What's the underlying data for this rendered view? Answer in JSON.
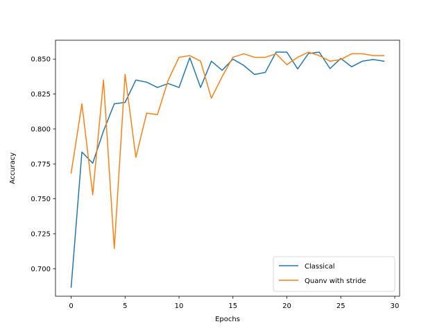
{
  "chart_data": {
    "type": "line",
    "title": "",
    "xlabel": "Epochs",
    "ylabel": "Accuracy",
    "xlim": [
      -1.45,
      30.45
    ],
    "ylim": [
      0.6803,
      0.8635
    ],
    "xticks": [
      0,
      5,
      10,
      15,
      20,
      25,
      30
    ],
    "yticks": [
      0.7,
      0.725,
      0.75,
      0.775,
      0.8,
      0.825,
      0.85
    ],
    "ytick_format_decimals": 3,
    "grid": false,
    "legend_position": "lower-right",
    "x": [
      0,
      1,
      2,
      3,
      4,
      5,
      6,
      7,
      8,
      9,
      10,
      11,
      12,
      13,
      14,
      15,
      16,
      17,
      18,
      19,
      20,
      21,
      22,
      23,
      24,
      25,
      26,
      27,
      28,
      29
    ],
    "series": [
      {
        "name": "Classical",
        "color": "#1f77b4",
        "values": [
          0.6867,
          0.7835,
          0.7755,
          0.7985,
          0.818,
          0.819,
          0.835,
          0.8335,
          0.8297,
          0.8325,
          0.8297,
          0.851,
          0.8297,
          0.8485,
          0.842,
          0.85,
          0.8455,
          0.839,
          0.8405,
          0.855,
          0.855,
          0.843,
          0.854,
          0.855,
          0.8432,
          0.8505,
          0.8445,
          0.8485,
          0.8497,
          0.8485
        ]
      },
      {
        "name": "Quanv with stride",
        "color": "#ff7f0e",
        "values": [
          0.7685,
          0.818,
          0.753,
          0.835,
          0.7145,
          0.839,
          0.7797,
          0.8113,
          0.8103,
          0.835,
          0.8513,
          0.8525,
          0.8485,
          0.822,
          0.8375,
          0.8513,
          0.8538,
          0.8513,
          0.8513,
          0.8538,
          0.846,
          0.8513,
          0.855,
          0.8525,
          0.8485,
          0.8497,
          0.8538,
          0.8538,
          0.8525,
          0.8525
        ]
      }
    ]
  }
}
